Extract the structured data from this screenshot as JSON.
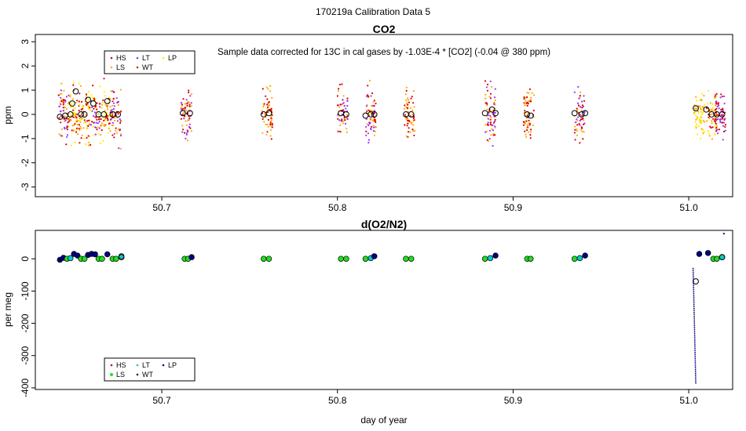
{
  "figure_title": "170219a   Calibration Data 5",
  "xlabel": "day of year",
  "legend_entries": [
    {
      "label": "HS",
      "color": "#cc0000"
    },
    {
      "label": "LS",
      "color": "#ff9900"
    },
    {
      "label": "LT",
      "color": "#00cccc"
    },
    {
      "label": "WT",
      "color": "#222222"
    },
    {
      "label": "LP",
      "color": "#eeee00"
    }
  ],
  "chart_data": [
    {
      "type": "scatter",
      "title": "CO2",
      "annotation": "Sample data corrected for 13C in cal gases by -1.03E-4 * [CO2] (-0.04 @ 380 ppm)",
      "xlabel": "",
      "ylabel": "ppm",
      "xlim": [
        50.628,
        51.025
      ],
      "ylim": [
        -3.4,
        3.3
      ],
      "xticks": [
        50.7,
        50.8,
        50.9,
        51.0
      ],
      "xtick_labels": [
        "50.7",
        "50.8",
        "50.9",
        "51.0"
      ],
      "yticks": [
        -3,
        -2,
        -1,
        0,
        1,
        2,
        3
      ],
      "ytick_labels": [
        "-3",
        "-2",
        "-1",
        "0",
        "1",
        "2",
        "3"
      ],
      "legend_position": "top-left",
      "series_colors": {
        "HS": "#dd0000",
        "LS": "#ffaa00",
        "LT": "#9933ff",
        "WT": "#cc3300",
        "LP": "#ffee00"
      },
      "clusters": [
        {
          "x": 50.644,
          "spread": 1.0,
          "n": 60,
          "groups": [
            "LT",
            "HS",
            "LS"
          ]
        },
        {
          "x": 50.65,
          "spread": 1.0,
          "n": 60,
          "groups": [
            "HS",
            "LP",
            "LS"
          ]
        },
        {
          "x": 50.656,
          "spread": 1.0,
          "n": 60,
          "groups": [
            "LP",
            "LS",
            "HS"
          ]
        },
        {
          "x": 50.662,
          "spread": 1.0,
          "n": 60,
          "groups": [
            "LP",
            "LT",
            "HS"
          ]
        },
        {
          "x": 50.668,
          "spread": 1.0,
          "n": 60,
          "groups": [
            "LP",
            "HS",
            "LS"
          ]
        },
        {
          "x": 50.674,
          "spread": 1.0,
          "n": 60,
          "groups": [
            "HS",
            "LT",
            "LS"
          ]
        },
        {
          "x": 50.714,
          "spread": 0.9,
          "n": 70,
          "groups": [
            "HS",
            "LS",
            "LT"
          ]
        },
        {
          "x": 50.76,
          "spread": 0.9,
          "n": 60,
          "groups": [
            "LS",
            "HS"
          ]
        },
        {
          "x": 50.803,
          "spread": 0.9,
          "n": 60,
          "groups": [
            "HS",
            "LT",
            "LS"
          ]
        },
        {
          "x": 50.819,
          "spread": 1.0,
          "n": 70,
          "groups": [
            "HS",
            "LT",
            "LS"
          ]
        },
        {
          "x": 50.841,
          "spread": 0.9,
          "n": 60,
          "groups": [
            "LS",
            "HS"
          ]
        },
        {
          "x": 50.887,
          "spread": 1.0,
          "n": 70,
          "groups": [
            "HS",
            "LT",
            "LS"
          ]
        },
        {
          "x": 50.909,
          "spread": 0.9,
          "n": 60,
          "groups": [
            "HS",
            "LS"
          ]
        },
        {
          "x": 50.938,
          "spread": 0.9,
          "n": 60,
          "groups": [
            "HS",
            "LT",
            "LS"
          ]
        },
        {
          "x": 51.006,
          "spread": 0.9,
          "n": 60,
          "groups": [
            "LP",
            "LS"
          ]
        },
        {
          "x": 51.013,
          "spread": 0.9,
          "n": 60,
          "groups": [
            "LP",
            "LS",
            "HS"
          ]
        },
        {
          "x": 51.018,
          "spread": 0.9,
          "n": 60,
          "groups": [
            "LT",
            "HS"
          ]
        }
      ],
      "means": [
        {
          "x": 50.642,
          "y": -0.1
        },
        {
          "x": 50.645,
          "y": -0.05
        },
        {
          "x": 50.648,
          "y": 0.0
        },
        {
          "x": 50.649,
          "y": 0.45
        },
        {
          "x": 50.651,
          "y": 0.95
        },
        {
          "x": 50.654,
          "y": 0.0
        },
        {
          "x": 50.656,
          "y": 0.0
        },
        {
          "x": 50.658,
          "y": 0.6
        },
        {
          "x": 50.661,
          "y": 0.45
        },
        {
          "x": 50.664,
          "y": 0.0
        },
        {
          "x": 50.667,
          "y": 0.0
        },
        {
          "x": 50.669,
          "y": 0.55
        },
        {
          "x": 50.672,
          "y": 0.0
        },
        {
          "x": 50.675,
          "y": 0.0
        },
        {
          "x": 50.712,
          "y": 0.05
        },
        {
          "x": 50.716,
          "y": 0.05
        },
        {
          "x": 50.758,
          "y": 0.0
        },
        {
          "x": 50.761,
          "y": 0.05
        },
        {
          "x": 50.802,
          "y": 0.05
        },
        {
          "x": 50.805,
          "y": 0.0
        },
        {
          "x": 50.816,
          "y": -0.05
        },
        {
          "x": 50.819,
          "y": 0.0
        },
        {
          "x": 50.821,
          "y": 0.0
        },
        {
          "x": 50.839,
          "y": 0.0
        },
        {
          "x": 50.842,
          "y": 0.0
        },
        {
          "x": 50.884,
          "y": 0.05
        },
        {
          "x": 50.888,
          "y": 0.2
        },
        {
          "x": 50.89,
          "y": 0.05
        },
        {
          "x": 50.908,
          "y": 0.0
        },
        {
          "x": 50.91,
          "y": -0.05
        },
        {
          "x": 50.935,
          "y": 0.05
        },
        {
          "x": 50.939,
          "y": 0.0
        },
        {
          "x": 50.941,
          "y": 0.05
        },
        {
          "x": 51.004,
          "y": 0.25
        },
        {
          "x": 51.01,
          "y": 0.2
        },
        {
          "x": 51.013,
          "y": 0.0
        },
        {
          "x": 51.016,
          "y": 0.0
        },
        {
          "x": 51.019,
          "y": 0.0
        }
      ]
    },
    {
      "type": "scatter",
      "title": "d(O2/N2)",
      "xlabel": "day of year",
      "ylabel": "per meg",
      "xlim": [
        50.628,
        51.025
      ],
      "ylim": [
        -405,
        88
      ],
      "xticks": [
        50.7,
        50.8,
        50.9,
        51.0
      ],
      "xtick_labels": [
        "50.7",
        "50.8",
        "50.9",
        "51.0"
      ],
      "yticks": [
        -400,
        -300,
        -200,
        -100,
        0
      ],
      "ytick_labels": [
        "-400",
        "-300",
        "-200",
        "-100",
        "0"
      ],
      "legend_position": "bottom-left",
      "points": [
        {
          "x": 50.642,
          "y": -3,
          "c": "#000080"
        },
        {
          "x": 50.644,
          "y": 3,
          "c": "#000080"
        },
        {
          "x": 50.646,
          "y": 0,
          "c": "#22dd22"
        },
        {
          "x": 50.648,
          "y": 2,
          "c": "#00cccc"
        },
        {
          "x": 50.65,
          "y": 15,
          "c": "#000080"
        },
        {
          "x": 50.652,
          "y": 10,
          "c": "#000080"
        },
        {
          "x": 50.654,
          "y": 0,
          "c": "#22dd22"
        },
        {
          "x": 50.656,
          "y": 0,
          "c": "#22dd22"
        },
        {
          "x": 50.658,
          "y": 12,
          "c": "#000080"
        },
        {
          "x": 50.66,
          "y": 15,
          "c": "#000080"
        },
        {
          "x": 50.662,
          "y": 14,
          "c": "#000080"
        },
        {
          "x": 50.664,
          "y": 0,
          "c": "#22dd22"
        },
        {
          "x": 50.666,
          "y": 0,
          "c": "#22dd22"
        },
        {
          "x": 50.669,
          "y": 14,
          "c": "#000080"
        },
        {
          "x": 50.672,
          "y": 0,
          "c": "#22dd22"
        },
        {
          "x": 50.674,
          "y": 0,
          "c": "#22dd22"
        },
        {
          "x": 50.677,
          "y": 8,
          "c": "#00cccc"
        },
        {
          "x": 50.713,
          "y": 0,
          "c": "#22dd22"
        },
        {
          "x": 50.715,
          "y": 0,
          "c": "#22dd22"
        },
        {
          "x": 50.717,
          "y": 5,
          "c": "#000080"
        },
        {
          "x": 50.758,
          "y": 0,
          "c": "#22dd22"
        },
        {
          "x": 50.761,
          "y": 0,
          "c": "#22dd22"
        },
        {
          "x": 50.802,
          "y": 0,
          "c": "#22dd22"
        },
        {
          "x": 50.805,
          "y": 0,
          "c": "#22dd22"
        },
        {
          "x": 50.816,
          "y": 0,
          "c": "#22dd22"
        },
        {
          "x": 50.819,
          "y": 2,
          "c": "#00cccc"
        },
        {
          "x": 50.821,
          "y": 8,
          "c": "#000080"
        },
        {
          "x": 50.839,
          "y": 0,
          "c": "#22dd22"
        },
        {
          "x": 50.842,
          "y": 0,
          "c": "#22dd22"
        },
        {
          "x": 50.884,
          "y": 0,
          "c": "#22dd22"
        },
        {
          "x": 50.887,
          "y": 2,
          "c": "#00cccc"
        },
        {
          "x": 50.89,
          "y": 10,
          "c": "#000080"
        },
        {
          "x": 50.908,
          "y": 0,
          "c": "#22dd22"
        },
        {
          "x": 50.91,
          "y": 0,
          "c": "#22dd22"
        },
        {
          "x": 50.935,
          "y": 0,
          "c": "#22dd22"
        },
        {
          "x": 50.938,
          "y": 2,
          "c": "#00cccc"
        },
        {
          "x": 50.941,
          "y": 10,
          "c": "#000080"
        },
        {
          "x": 51.006,
          "y": 15,
          "c": "#000080"
        },
        {
          "x": 51.011,
          "y": 18,
          "c": "#000080"
        },
        {
          "x": 51.014,
          "y": 0,
          "c": "#22dd22"
        },
        {
          "x": 51.016,
          "y": 0,
          "c": "#22dd22"
        },
        {
          "x": 51.019,
          "y": 5,
          "c": "#00cccc"
        }
      ],
      "open_means": [
        {
          "x": 51.004,
          "y": -70
        },
        {
          "x": 50.677,
          "y": 5
        },
        {
          "x": 51.019,
          "y": 5
        }
      ],
      "descent": {
        "x_start": 51.0025,
        "x_end": 51.004,
        "y_top": -30,
        "y_bottom": -385
      },
      "outliers": [
        {
          "x": 51.02,
          "y": 78
        }
      ]
    }
  ]
}
